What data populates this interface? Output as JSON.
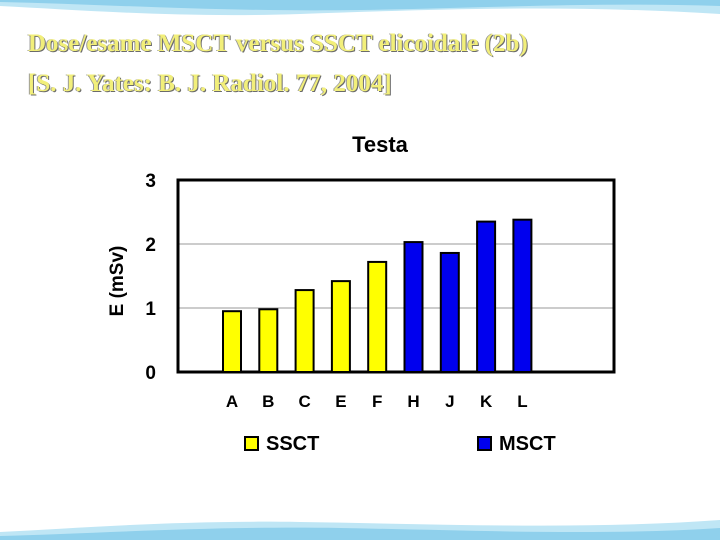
{
  "slide": {
    "title_line1": "Dose/esame MSCT versus SSCT elicoidale (2b)",
    "title_line2": "[S. J. Yates: B. J. Radiol. 77, 2004]"
  },
  "colors": {
    "SSCT": "#ffff00",
    "MSCT": "#0000ee",
    "title": "#f2ef7a",
    "wave": "#9ed6ee"
  },
  "chart_data": {
    "type": "bar",
    "title": "Testa",
    "xlabel": "",
    "ylabel": "E (mSv)",
    "ylim": [
      0,
      3
    ],
    "yticks": [
      0,
      1,
      2,
      3
    ],
    "grid": true,
    "legend": "bottom",
    "categories": [
      "A",
      "B",
      "C",
      "E",
      "F",
      "H",
      "J",
      "K",
      "L"
    ],
    "series": [
      {
        "name": "SSCT",
        "values": [
          0.95,
          0.98,
          1.28,
          1.42,
          1.72,
          null,
          null,
          null,
          null
        ]
      },
      {
        "name": "MSCT",
        "values": [
          null,
          null,
          null,
          null,
          null,
          2.03,
          1.86,
          2.35,
          2.38
        ]
      }
    ]
  }
}
